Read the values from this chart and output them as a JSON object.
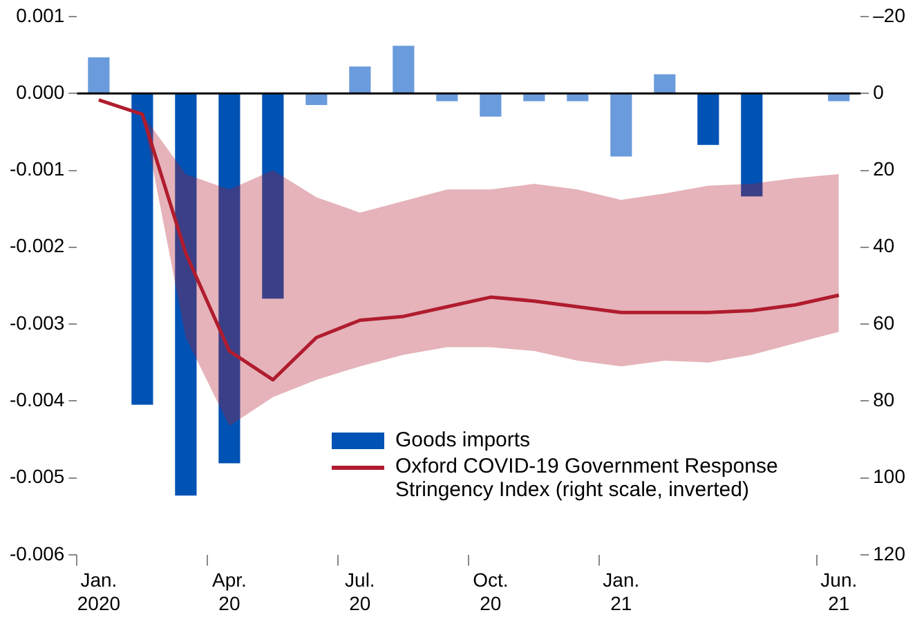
{
  "chart_data": {
    "type": "bar",
    "categories": [
      "Jan.\n2020",
      null,
      null,
      "Apr.\n20",
      null,
      null,
      "Jul.\n20",
      null,
      null,
      "Oct.\n20",
      null,
      null,
      "Jan.\n21",
      null,
      null,
      null,
      null,
      "Jun.\n21"
    ],
    "series": [
      {
        "name": "Goods imports",
        "color": "#0052b4",
        "colors": [
          "#6a9bdc",
          "#0052b4",
          "#0052b4",
          "#0052b4",
          "#0052b4",
          "#6a9bdc",
          "#6a9bdc",
          "#6a9bdc",
          "#6a9bdc",
          "#6a9bdc",
          "#6a9bdc",
          "#6a9bdc",
          "#6a9bdc",
          "#6a9bdc",
          "#0052b4",
          "#0052b4",
          "#6a9bdc",
          "#6a9bdc"
        ],
        "values": [
          0.00047,
          -0.00405,
          -0.00523,
          -0.00481,
          -0.00267,
          -0.00015,
          0.00035,
          0.00062,
          -0.0001,
          -0.0003,
          -0.0001,
          -0.0001,
          -0.00082,
          0.00025,
          -0.00067,
          -0.00134,
          0,
          -0.0001
        ]
      },
      {
        "name": "Oxford COVID-19 Government Response Stringency Index (right scale, inverted)",
        "type": "line",
        "axis": "y2",
        "color": "#b01c2e",
        "values": [
          1.7,
          5.4,
          41.6,
          67,
          74.5,
          63.5,
          59,
          58,
          55.5,
          53,
          54,
          55.5,
          57,
          57,
          57,
          56.5,
          55,
          52.5
        ],
        "upper": [
          1.7,
          5.4,
          21,
          25,
          20,
          27,
          31,
          28,
          25,
          25,
          23.5,
          25,
          27.7,
          26,
          24,
          23.5,
          22,
          21
        ],
        "lower": [
          1.7,
          5.4,
          63.5,
          86.5,
          79,
          74.5,
          71,
          68,
          66,
          66,
          67,
          69.5,
          71,
          69.5,
          70,
          68,
          65,
          62
        ]
      }
    ],
    "ylim": [
      -0.006,
      0.001
    ],
    "yticks": [
      0.001,
      {
        "value": 0,
        "label": "0.000"
      },
      -0.001,
      -0.002,
      -0.003,
      -0.004,
      -0.005,
      -0.006
    ],
    "y2lim": [
      120,
      -20
    ],
    "y2ticks": [
      {
        "value": -20,
        "label": "–20"
      },
      {
        "value": 0,
        "label": "0"
      },
      20,
      40,
      60,
      80,
      100,
      120
    ],
    "ref_lines": [
      {
        "axis": "y",
        "value": 0,
        "color": "#000000"
      }
    ],
    "grid": false,
    "legend": "bottom right",
    "line_style": "solid",
    "marker": "none"
  }
}
